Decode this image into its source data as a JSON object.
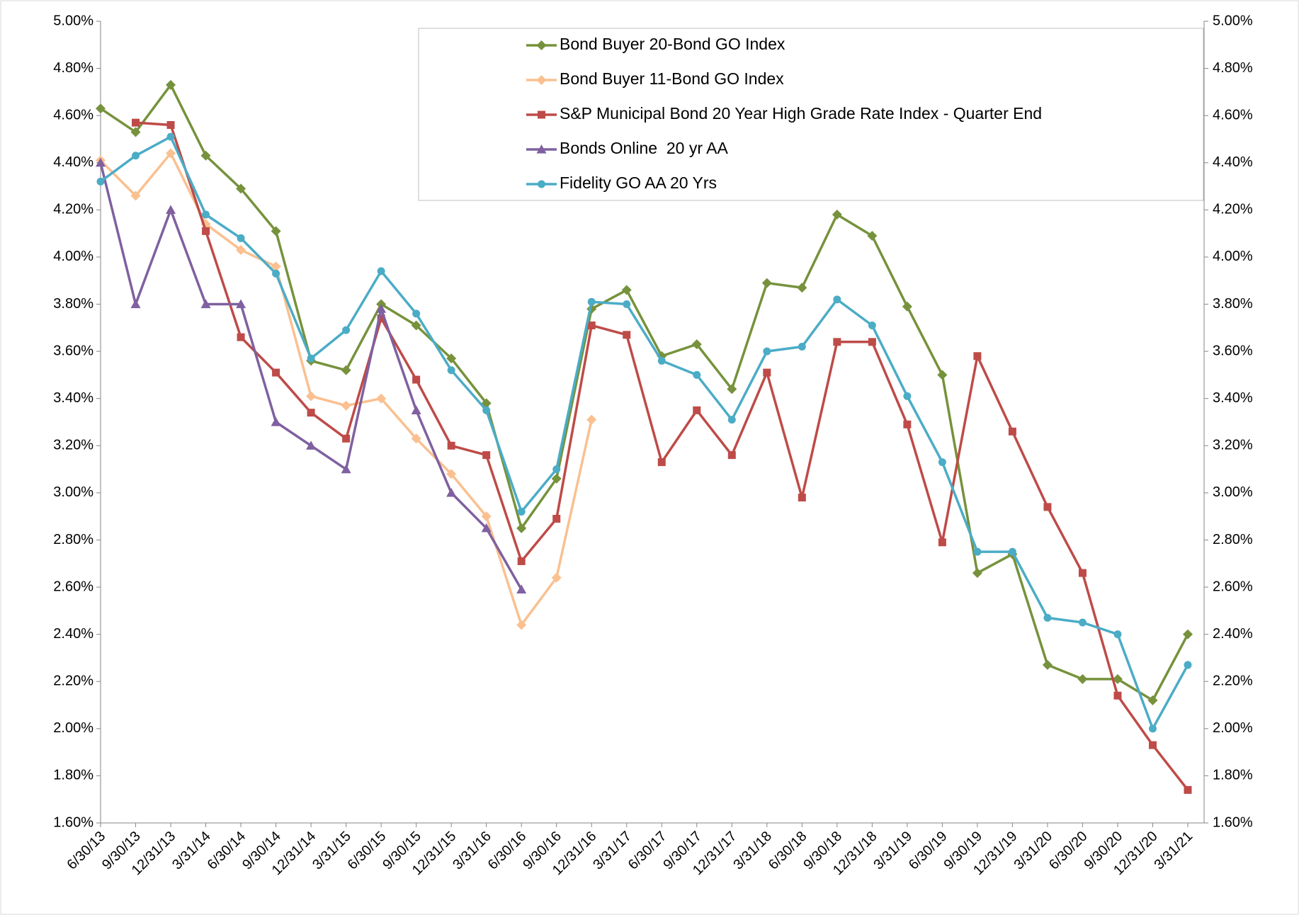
{
  "chart_data": {
    "type": "line",
    "categories": [
      "6/30/13",
      "9/30/13",
      "12/31/13",
      "3/31/14",
      "6/30/14",
      "9/30/14",
      "12/31/14",
      "3/31/15",
      "6/30/15",
      "9/30/15",
      "12/31/15",
      "3/31/16",
      "6/30/16",
      "9/30/16",
      "12/31/16",
      "3/31/17",
      "6/30/17",
      "9/30/17",
      "12/31/17",
      "3/31/18",
      "6/30/18",
      "9/30/18",
      "12/31/18",
      "3/31/19",
      "6/30/19",
      "9/30/19",
      "12/31/19",
      "3/31/20",
      "6/30/20",
      "9/30/20",
      "12/31/20",
      "3/31/21"
    ],
    "series": [
      {
        "name": "Bond Buyer 20-Bond GO Index",
        "color": "#76923c",
        "marker": "diamond",
        "values": [
          4.63,
          4.53,
          4.73,
          4.43,
          4.29,
          4.11,
          3.56,
          3.52,
          3.8,
          3.71,
          3.57,
          3.38,
          2.85,
          3.06,
          3.78,
          3.86,
          3.58,
          3.63,
          3.44,
          3.89,
          3.87,
          4.18,
          4.09,
          3.79,
          3.5,
          2.66,
          2.74,
          2.27,
          2.21,
          2.21,
          2.12,
          2.4
        ]
      },
      {
        "name": "Bond Buyer 11-Bond GO Index",
        "color": "#fac090",
        "marker": "diamond",
        "values": [
          4.41,
          4.26,
          4.44,
          4.14,
          4.03,
          3.96,
          3.41,
          3.37,
          3.4,
          3.23,
          3.08,
          2.9,
          2.44,
          2.64,
          3.31,
          null,
          null,
          null,
          null,
          null,
          null,
          null,
          null,
          null,
          null,
          null,
          null,
          null,
          null,
          null,
          null,
          null
        ]
      },
      {
        "name": "S&P Municipal Bond 20 Year High Grade Rate Index - Quarter End",
        "color": "#be4b48",
        "marker": "square",
        "values": [
          null,
          4.57,
          4.56,
          4.11,
          3.66,
          3.51,
          3.34,
          3.23,
          3.74,
          3.48,
          3.2,
          3.16,
          2.71,
          2.89,
          3.71,
          3.67,
          3.13,
          3.35,
          3.16,
          3.51,
          2.98,
          3.64,
          3.64,
          3.29,
          2.79,
          3.58,
          3.26,
          2.94,
          2.66,
          2.14,
          1.93,
          1.74
        ]
      },
      {
        "name": "Bonds Online  20 yr AA",
        "color": "#7f60a0",
        "marker": "triangle",
        "values": [
          4.4,
          3.8,
          4.2,
          3.8,
          3.8,
          3.3,
          3.2,
          3.1,
          3.78,
          3.35,
          3.0,
          2.85,
          2.59,
          null,
          null,
          null,
          null,
          null,
          null,
          null,
          null,
          null,
          null,
          null,
          null,
          null,
          null,
          null,
          null,
          null,
          null,
          null
        ]
      },
      {
        "name": "Fidelity GO AA 20 Yrs",
        "color": "#4bacc6",
        "marker": "circle",
        "values": [
          4.32,
          4.43,
          4.51,
          4.18,
          4.08,
          3.93,
          3.57,
          3.69,
          3.94,
          3.76,
          3.52,
          3.35,
          2.92,
          3.1,
          3.81,
          3.8,
          3.56,
          3.5,
          3.31,
          3.6,
          3.62,
          3.82,
          3.71,
          3.41,
          3.13,
          2.75,
          2.75,
          2.47,
          2.45,
          2.4,
          2.0,
          2.27
        ]
      }
    ],
    "ylim": [
      1.6,
      5.0
    ],
    "yticks": [
      {
        "value": 1.6,
        "label": "1.60%"
      },
      {
        "value": 1.8,
        "label": "1.80%"
      },
      {
        "value": 2.0,
        "label": "2.00%"
      },
      {
        "value": 2.2,
        "label": "2.20%"
      },
      {
        "value": 2.4,
        "label": "2.40%"
      },
      {
        "value": 2.6,
        "label": "2.60%"
      },
      {
        "value": 2.8,
        "label": "2.80%"
      },
      {
        "value": 3.0,
        "label": "3.00%"
      },
      {
        "value": 3.2,
        "label": "3.20%"
      },
      {
        "value": 3.4,
        "label": "3.40%"
      },
      {
        "value": 3.6,
        "label": "3.60%"
      },
      {
        "value": 3.8,
        "label": "3.80%"
      },
      {
        "value": 4.0,
        "label": "4.00%"
      },
      {
        "value": 4.2,
        "label": "4.20%"
      },
      {
        "value": 4.4,
        "label": "4.40%"
      },
      {
        "value": 4.6,
        "label": "4.60%"
      },
      {
        "value": 4.8,
        "label": "4.80%"
      },
      {
        "value": 5.0,
        "label": "5.00%"
      }
    ],
    "grid": false,
    "legend": "top-right"
  }
}
